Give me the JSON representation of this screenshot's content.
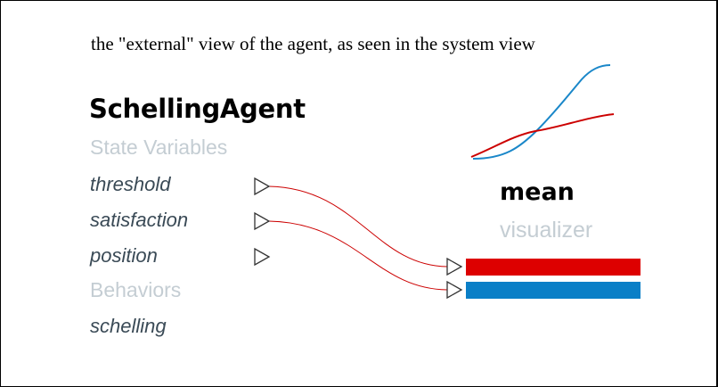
{
  "caption": "the \"external\" view of the agent, as seen in the system view",
  "agent": {
    "name": "SchellingAgent",
    "state_variables_heading": "State Variables",
    "state_variables": [
      "threshold",
      "satisfaction",
      "position"
    ],
    "behaviors_heading": "Behaviors",
    "behaviors": [
      "schelling"
    ]
  },
  "visualizer": {
    "name": "mean",
    "type": "visualizer",
    "inputs": [
      {
        "source": "threshold",
        "color": "#dd0000"
      },
      {
        "source": "satisfaction",
        "color": "#0a7fc7"
      }
    ]
  },
  "colors": {
    "connection": "#cc0000",
    "port_stroke": "#333333",
    "heading_gray": "#c4cdd3",
    "variable_text": "#3a4a56",
    "sparkline_red": "#cc0000",
    "sparkline_blue": "#1a87c9"
  },
  "icons": {
    "output_port": "triangle-right-outline",
    "input_port": "triangle-right-outline"
  }
}
